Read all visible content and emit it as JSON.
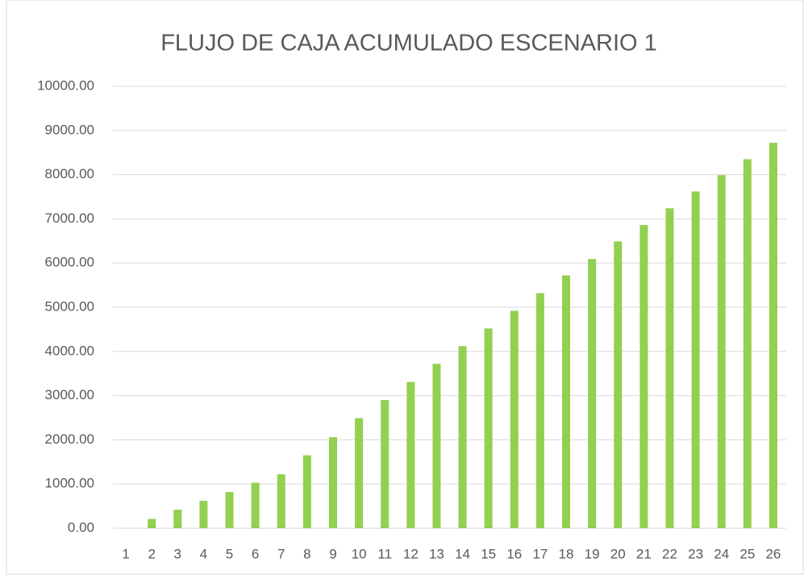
{
  "chart_data": {
    "type": "bar",
    "title": "FLUJO DE CAJA ACUMULADO ESCENARIO 1",
    "categories": [
      "1",
      "2",
      "3",
      "4",
      "5",
      "6",
      "7",
      "8",
      "9",
      "10",
      "11",
      "12",
      "13",
      "14",
      "15",
      "16",
      "17",
      "18",
      "19",
      "20",
      "21",
      "22",
      "23",
      "24",
      "25",
      "26"
    ],
    "values": [
      0,
      210,
      420,
      620,
      820,
      1030,
      1220,
      1650,
      2060,
      2490,
      2900,
      3310,
      3720,
      4120,
      4520,
      4920,
      5320,
      5720,
      6090,
      6490,
      6860,
      7240,
      7620,
      7990,
      8350,
      8720
    ],
    "color": "#92d050",
    "ylim": [
      0,
      10000
    ],
    "yticks": [
      {
        "value": 0,
        "label": "0.00"
      },
      {
        "value": 1000,
        "label": "1000.00"
      },
      {
        "value": 2000,
        "label": "2000.00"
      },
      {
        "value": 3000,
        "label": "3000.00"
      },
      {
        "value": 4000,
        "label": "4000.00"
      },
      {
        "value": 5000,
        "label": "5000.00"
      },
      {
        "value": 6000,
        "label": "6000.00"
      },
      {
        "value": 7000,
        "label": "7000.00"
      },
      {
        "value": 8000,
        "label": "8000.00"
      },
      {
        "value": 9000,
        "label": "9000.00"
      },
      {
        "value": 10000,
        "label": "10000.00"
      }
    ],
    "grid": true
  }
}
